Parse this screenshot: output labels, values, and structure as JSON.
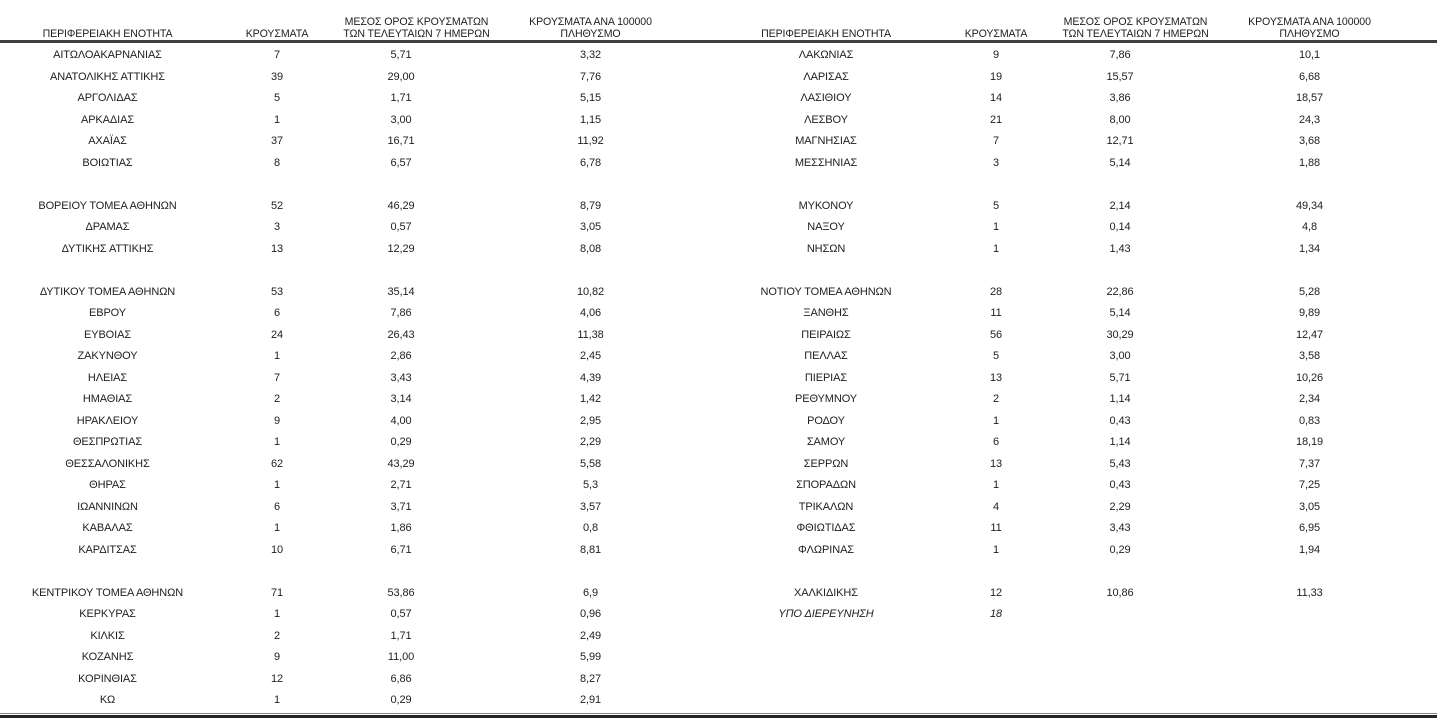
{
  "colors": {
    "text": "#1e1e1e",
    "header_rule": "#3f3f3f",
    "bottom_rule_thin": "#868686",
    "bottom_rule_thick": "#242424"
  },
  "table": {
    "headers": {
      "region": "ΠΕΡΙΦΕΡΕΙΑΚΗ ΕΝΟΤΗΤΑ",
      "cases": "ΚΡΟΥΣΜΑΤΑ",
      "avg7": "ΜΕΣΟΣ ΟΡΟΣ ΚΡΟΥΣΜΑΤΩΝ ΤΩΝ ΤΕΛΕΥΤΑΙΩΝ 7 ΗΜΕΡΩΝ",
      "per100k": "ΚΡΟΥΣΜΑΤΑ ΑΝΑ 100000 ΠΛΗΘΥΣΜΟ"
    },
    "rows": [
      {
        "left": {
          "name": "ΑΙΤΩΛΟΑΚΑΡΝΑΝΙΑΣ",
          "cases": "7",
          "avg7": "5,71",
          "per100k": "3,32"
        },
        "right": {
          "name": "ΛΑΚΩΝΙΑΣ",
          "cases": "9",
          "avg7": "7,86",
          "per100k": "10,1"
        }
      },
      {
        "left": {
          "name": "ΑΝΑΤΟΛΙΚΗΣ ΑΤΤΙΚΗΣ",
          "cases": "39",
          "avg7": "29,00",
          "per100k": "7,76"
        },
        "right": {
          "name": "ΛΑΡΙΣΑΣ",
          "cases": "19",
          "avg7": "15,57",
          "per100k": "6,68"
        }
      },
      {
        "left": {
          "name": "ΑΡΓΟΛΙΔΑΣ",
          "cases": "5",
          "avg7": "1,71",
          "per100k": "5,15"
        },
        "right": {
          "name": "ΛΑΣΙΘΙΟΥ",
          "cases": "14",
          "avg7": "3,86",
          "per100k": "18,57"
        }
      },
      {
        "left": {
          "name": "ΑΡΚΑΔΙΑΣ",
          "cases": "1",
          "avg7": "3,00",
          "per100k": "1,15"
        },
        "right": {
          "name": "ΛΕΣΒΟΥ",
          "cases": "21",
          "avg7": "8,00",
          "per100k": "24,3"
        }
      },
      {
        "left": {
          "name": "ΑΧΑΪΑΣ",
          "cases": "37",
          "avg7": "16,71",
          "per100k": "11,92"
        },
        "right": {
          "name": "ΜΑΓΝΗΣΙΑΣ",
          "cases": "7",
          "avg7": "12,71",
          "per100k": "3,68"
        }
      },
      {
        "left": {
          "name": "ΒΟΙΩΤΙΑΣ",
          "cases": "8",
          "avg7": "6,57",
          "per100k": "6,78"
        },
        "right": {
          "name": "ΜΕΣΣΗΝΙΑΣ",
          "cases": "3",
          "avg7": "5,14",
          "per100k": "1,88"
        }
      },
      {
        "left": null,
        "right": null
      },
      {
        "left": {
          "name": "ΒΟΡΕΙΟΥ ΤΟΜΕΑ ΑΘΗΝΩΝ",
          "cases": "52",
          "avg7": "46,29",
          "per100k": "8,79"
        },
        "right": {
          "name": "ΜΥΚΟΝΟΥ",
          "cases": "5",
          "avg7": "2,14",
          "per100k": "49,34"
        }
      },
      {
        "left": {
          "name": "ΔΡΑΜΑΣ",
          "cases": "3",
          "avg7": "0,57",
          "per100k": "3,05"
        },
        "right": {
          "name": "ΝΑΞΟΥ",
          "cases": "1",
          "avg7": "0,14",
          "per100k": "4,8"
        }
      },
      {
        "left": {
          "name": "ΔΥΤΙΚΗΣ ΑΤΤΙΚΗΣ",
          "cases": "13",
          "avg7": "12,29",
          "per100k": "8,08"
        },
        "right": {
          "name": "ΝΗΣΩΝ",
          "cases": "1",
          "avg7": "1,43",
          "per100k": "1,34"
        }
      },
      {
        "left": null,
        "right": null
      },
      {
        "left": {
          "name": "ΔΥΤΙΚΟΥ ΤΟΜΕΑ ΑΘΗΝΩΝ",
          "cases": "53",
          "avg7": "35,14",
          "per100k": "10,82"
        },
        "right": {
          "name": "ΝΟΤΙΟΥ ΤΟΜΕΑ ΑΘΗΝΩΝ",
          "cases": "28",
          "avg7": "22,86",
          "per100k": "5,28"
        }
      },
      {
        "left": {
          "name": "ΕΒΡΟΥ",
          "cases": "6",
          "avg7": "7,86",
          "per100k": "4,06"
        },
        "right": {
          "name": "ΞΑΝΘΗΣ",
          "cases": "11",
          "avg7": "5,14",
          "per100k": "9,89"
        }
      },
      {
        "left": {
          "name": "ΕΥΒΟΙΑΣ",
          "cases": "24",
          "avg7": "26,43",
          "per100k": "11,38"
        },
        "right": {
          "name": "ΠΕΙΡΑΙΩΣ",
          "cases": "56",
          "avg7": "30,29",
          "per100k": "12,47"
        }
      },
      {
        "left": {
          "name": "ΖΑΚΥΝΘΟΥ",
          "cases": "1",
          "avg7": "2,86",
          "per100k": "2,45"
        },
        "right": {
          "name": "ΠΕΛΛΑΣ",
          "cases": "5",
          "avg7": "3,00",
          "per100k": "3,58"
        }
      },
      {
        "left": {
          "name": "ΗΛΕΙΑΣ",
          "cases": "7",
          "avg7": "3,43",
          "per100k": "4,39"
        },
        "right": {
          "name": "ΠΙΕΡΙΑΣ",
          "cases": "13",
          "avg7": "5,71",
          "per100k": "10,26"
        }
      },
      {
        "left": {
          "name": "ΗΜΑΘΙΑΣ",
          "cases": "2",
          "avg7": "3,14",
          "per100k": "1,42"
        },
        "right": {
          "name": "ΡΕΘΥΜΝΟΥ",
          "cases": "2",
          "avg7": "1,14",
          "per100k": "2,34"
        }
      },
      {
        "left": {
          "name": "ΗΡΑΚΛΕΙΟΥ",
          "cases": "9",
          "avg7": "4,00",
          "per100k": "2,95"
        },
        "right": {
          "name": "ΡΟΔΟΥ",
          "cases": "1",
          "avg7": "0,43",
          "per100k": "0,83"
        }
      },
      {
        "left": {
          "name": "ΘΕΣΠΡΩΤΙΑΣ",
          "cases": "1",
          "avg7": "0,29",
          "per100k": "2,29"
        },
        "right": {
          "name": "ΣΑΜΟΥ",
          "cases": "6",
          "avg7": "1,14",
          "per100k": "18,19"
        }
      },
      {
        "left": {
          "name": "ΘΕΣΣΑΛΟΝΙΚΗΣ",
          "cases": "62",
          "avg7": "43,29",
          "per100k": "5,58"
        },
        "right": {
          "name": "ΣΕΡΡΩΝ",
          "cases": "13",
          "avg7": "5,43",
          "per100k": "7,37"
        }
      },
      {
        "left": {
          "name": "ΘΗΡΑΣ",
          "cases": "1",
          "avg7": "2,71",
          "per100k": "5,3"
        },
        "right": {
          "name": "ΣΠΟΡΑΔΩΝ",
          "cases": "1",
          "avg7": "0,43",
          "per100k": "7,25"
        }
      },
      {
        "left": {
          "name": "ΙΩΑΝΝΙΝΩΝ",
          "cases": "6",
          "avg7": "3,71",
          "per100k": "3,57"
        },
        "right": {
          "name": "ΤΡΙΚΑΛΩΝ",
          "cases": "4",
          "avg7": "2,29",
          "per100k": "3,05"
        }
      },
      {
        "left": {
          "name": "ΚΑΒΑΛΑΣ",
          "cases": "1",
          "avg7": "1,86",
          "per100k": "0,8"
        },
        "right": {
          "name": "ΦΘΙΩΤΙΔΑΣ",
          "cases": "11",
          "avg7": "3,43",
          "per100k": "6,95"
        }
      },
      {
        "left": {
          "name": "ΚΑΡΔΙΤΣΑΣ",
          "cases": "10",
          "avg7": "6,71",
          "per100k": "8,81"
        },
        "right": {
          "name": "ΦΛΩΡΙΝΑΣ",
          "cases": "1",
          "avg7": "0,29",
          "per100k": "1,94"
        }
      },
      {
        "left": null,
        "right": null
      },
      {
        "left": {
          "name": "ΚΕΝΤΡΙΚΟΥ ΤΟΜΕΑ ΑΘΗΝΩΝ",
          "cases": "71",
          "avg7": "53,86",
          "per100k": "6,9"
        },
        "right": {
          "name": "ΧΑΛΚΙΔΙΚΗΣ",
          "cases": "12",
          "avg7": "10,86",
          "per100k": "11,33"
        }
      },
      {
        "left": {
          "name": "ΚΕΡΚΥΡΑΣ",
          "cases": "1",
          "avg7": "0,57",
          "per100k": "0,96"
        },
        "right": {
          "name": "ΥΠΟ ΔΙΕΡΕΥΝΗΣΗ",
          "cases": "18",
          "avg7": "",
          "per100k": "",
          "italic": true
        }
      },
      {
        "left": {
          "name": "ΚΙΛΚΙΣ",
          "cases": "2",
          "avg7": "1,71",
          "per100k": "2,49"
        },
        "right": null
      },
      {
        "left": {
          "name": "ΚΟΖΑΝΗΣ",
          "cases": "9",
          "avg7": "11,00",
          "per100k": "5,99"
        },
        "right": null
      },
      {
        "left": {
          "name": "ΚΟΡΙΝΘΙΑΣ",
          "cases": "12",
          "avg7": "6,86",
          "per100k": "8,27"
        },
        "right": null
      },
      {
        "left": {
          "name": "ΚΩ",
          "cases": "1",
          "avg7": "0,29",
          "per100k": "2,91"
        },
        "right": null
      }
    ]
  }
}
